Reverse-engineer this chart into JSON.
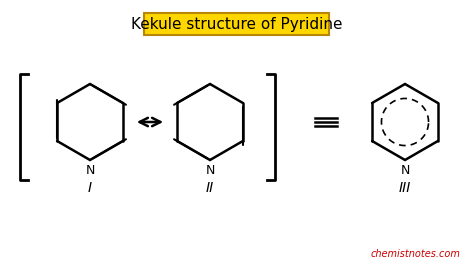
{
  "title": "Kekule structure of Pyridine",
  "title_bg": "#FFD700",
  "title_border": "#B8860B",
  "title_fontsize": 11,
  "watermark": "chemistnotes.com",
  "watermark_color": "#CC0000",
  "bg_color": "#ffffff",
  "label_I": "I",
  "label_II": "II",
  "label_III": "III"
}
